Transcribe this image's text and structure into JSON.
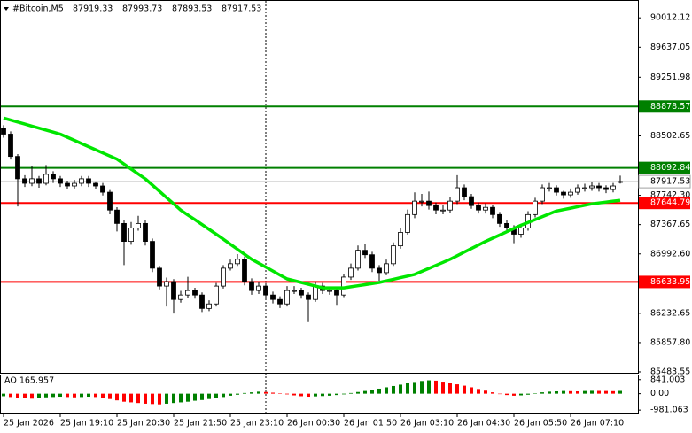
{
  "chart_data": {
    "type": "candlestick",
    "symbol": "#Bitcoin,M5",
    "categories": [
      "25 Jan 2026",
      null,
      null,
      null,
      null,
      null,
      null,
      null,
      "25 Jan 19:10",
      null,
      null,
      null,
      null,
      null,
      null,
      null,
      "25 Jan 20:30",
      null,
      null,
      null,
      null,
      null,
      null,
      null,
      "25 Jan 21:50",
      null,
      null,
      null,
      null,
      null,
      null,
      null,
      "25 Jan 23:10",
      null,
      null,
      null,
      null,
      null,
      null,
      null,
      "26 Jan 00:30",
      null,
      null,
      null,
      null,
      null,
      null,
      null,
      "26 Jan 01:50",
      null,
      null,
      null,
      null,
      null,
      null,
      null,
      "26 Jan 03:10",
      null,
      null,
      null,
      null,
      null,
      null,
      null,
      "26 Jan 04:30",
      null,
      null,
      null,
      null,
      null,
      null,
      null,
      "26 Jan 05:50",
      null,
      null,
      null,
      null,
      null,
      null,
      null,
      "26 Jan 07:10",
      null,
      null,
      null,
      null,
      null,
      null,
      null
    ],
    "open": [
      88600,
      88525,
      88240,
      87954,
      87896,
      87954,
      87896,
      88011,
      87954,
      87896,
      87862,
      87896,
      87954,
      87896,
      87862,
      87782,
      87554,
      87382,
      87153,
      87325,
      87382,
      87153,
      86810,
      86581,
      86638,
      86410,
      86467,
      86524,
      86467,
      86295,
      86353,
      86581,
      86810,
      86867,
      86924,
      86638,
      86524,
      86581,
      86467,
      86410,
      86353,
      86524,
      86524,
      86467,
      86410,
      86581,
      86524,
      86524,
      86467,
      86696,
      86810,
      87039,
      86982,
      86810,
      86753,
      86867,
      87096,
      87268,
      87496,
      87668,
      87668,
      87611,
      87554,
      87554,
      87668,
      87839,
      87725,
      87611,
      87554,
      87588,
      87496,
      87382,
      87325,
      87245,
      87325,
      87496,
      87668,
      87839,
      87839,
      87782,
      87748,
      87782,
      87839,
      87839,
      87862,
      87839,
      87816,
      87919.33
    ],
    "high": [
      88640,
      88560,
      88270,
      88000,
      88120,
      87990,
      88130,
      88050,
      87990,
      87930,
      87940,
      87990,
      87990,
      87920,
      87900,
      87810,
      87590,
      87420,
      87400,
      87480,
      87420,
      87190,
      86840,
      86690,
      86670,
      86520,
      86700,
      86560,
      86500,
      86400,
      86620,
      86850,
      86920,
      86990,
      86960,
      86680,
      86630,
      86620,
      86510,
      86450,
      86580,
      86580,
      86560,
      86500,
      86640,
      86620,
      86570,
      86560,
      86740,
      86870,
      87100,
      87120,
      87020,
      86850,
      86920,
      87140,
      87320,
      87560,
      87780,
      87760,
      87790,
      87650,
      87620,
      87720,
      88000,
      87880,
      87760,
      87650,
      87640,
      87620,
      87530,
      87420,
      87360,
      87370,
      87540,
      87710,
      87880,
      87900,
      87870,
      87800,
      87830,
      87880,
      87890,
      87910,
      87900,
      87870,
      87900,
      87993.73
    ],
    "low": [
      88480,
      88200,
      87600,
      87850,
      87860,
      87840,
      87870,
      87900,
      87850,
      87820,
      87830,
      87860,
      87850,
      87820,
      87740,
      87500,
      87280,
      86850,
      87110,
      87290,
      87100,
      86760,
      86540,
      86320,
      86230,
      86370,
      86430,
      86420,
      86250,
      86260,
      86320,
      86550,
      86780,
      86840,
      86590,
      86470,
      86480,
      86420,
      86360,
      86300,
      86320,
      86480,
      86420,
      86120,
      86380,
      86480,
      86470,
      86330,
      86440,
      86660,
      86780,
      86940,
      86760,
      86650,
      86720,
      86840,
      87060,
      87240,
      87450,
      87600,
      87560,
      87500,
      87500,
      87520,
      87630,
      87680,
      87570,
      87510,
      87510,
      87450,
      87340,
      87280,
      87130,
      87200,
      87290,
      87460,
      87630,
      87790,
      87740,
      87700,
      87710,
      87750,
      87790,
      87800,
      87790,
      87770,
      87780,
      87893.53
    ],
    "close": [
      88525,
      88240,
      87954,
      87896,
      87954,
      87896,
      88011,
      87954,
      87896,
      87862,
      87896,
      87954,
      87896,
      87862,
      87782,
      87554,
      87382,
      87153,
      87325,
      87382,
      87153,
      86810,
      86581,
      86638,
      86410,
      86467,
      86524,
      86467,
      86295,
      86353,
      86581,
      86810,
      86867,
      86924,
      86638,
      86524,
      86581,
      86467,
      86410,
      86353,
      86524,
      86524,
      86467,
      86410,
      86581,
      86524,
      86524,
      86467,
      86696,
      86810,
      87039,
      86982,
      86810,
      86753,
      86867,
      87096,
      87268,
      87496,
      87668,
      87668,
      87611,
      87554,
      87554,
      87668,
      87839,
      87725,
      87611,
      87554,
      87588,
      87496,
      87382,
      87325,
      87245,
      87325,
      87496,
      87668,
      87839,
      87839,
      87782,
      87748,
      87782,
      87839,
      87839,
      87862,
      87839,
      87816,
      87862,
      87917.53
    ],
    "up_color": "#ffffff",
    "down_color": "#000000",
    "ma": {
      "color": "#00e600",
      "values": [
        88731,
        88705,
        88680,
        88654,
        88628,
        88602,
        88577,
        88551,
        88525,
        88485,
        88445,
        88405,
        88365,
        88325,
        88285,
        88245,
        88205,
        88142,
        88079,
        88016,
        87953,
        87873,
        87793,
        87713,
        87633,
        87553,
        87491,
        87430,
        87368,
        87307,
        87245,
        87181,
        87117,
        87052,
        86988,
        86924,
        86874,
        86824,
        86773,
        86723,
        86673,
        86650,
        86627,
        86604,
        86581,
        86558,
        86558,
        86558,
        86558,
        86572,
        86586,
        86599,
        86613,
        86627,
        86648,
        86668,
        86689,
        86709,
        86730,
        86769,
        86808,
        86846,
        86885,
        86924,
        86970,
        87016,
        87061,
        87107,
        87153,
        87194,
        87235,
        87276,
        87318,
        87359,
        87396,
        87432,
        87469,
        87505,
        87542,
        87560,
        87578,
        87597,
        87615,
        87633,
        87645,
        87656,
        87668,
        87679
      ]
    },
    "levels": [
      {
        "value": 88878.57,
        "color": "#008000"
      },
      {
        "value": 88092.84,
        "color": "#008000"
      },
      {
        "value": 87644.79,
        "color": "#ff0000"
      },
      {
        "value": 86633.95,
        "color": "#ff0000"
      }
    ],
    "current_color": "#a0a0a0",
    "ylim": [
      85438,
      90241
    ],
    "yticks": [
      90012.12,
      89637.05,
      89251.98,
      88502.65,
      {
        "value": 87742.3,
        "label": "87742.30"
      },
      87367.65,
      {
        "value": 86992.6,
        "label": "86992.60"
      },
      86232.65,
      {
        "value": 85857.8,
        "label": "85857.80"
      },
      85483.55
    ],
    "ao": {
      "label": "AO 165.957",
      "up_color": "#008000",
      "down_color": "#ff0000",
      "values": [
        -150,
        -200,
        -250,
        -280,
        -300,
        -260,
        -220,
        -200,
        -180,
        -200,
        -220,
        -200,
        -180,
        -200,
        -250,
        -320,
        -400,
        -480,
        -520,
        -560,
        -600,
        -620,
        -640,
        -600,
        -560,
        -520,
        -480,
        -420,
        -380,
        -320,
        -260,
        -200,
        -120,
        -60,
        40,
        80,
        120,
        100,
        60,
        20,
        -40,
        -100,
        -150,
        -180,
        -160,
        -140,
        -120,
        -80,
        -40,
        40,
        100,
        160,
        240,
        300,
        380,
        460,
        540,
        620,
        700,
        760,
        800,
        780,
        720,
        640,
        560,
        480,
        380,
        280,
        180,
        80,
        -20,
        -80,
        -120,
        -100,
        -60,
        20,
        80,
        120,
        140,
        160,
        150,
        140,
        160,
        170,
        166,
        160,
        150,
        165.957
      ],
      "ylim": [
        -1133,
        1094
      ],
      "yticks": [
        841.003,
        {
          "value": 0,
          "label": "0.00"
        },
        -981.063
      ]
    }
  }
}
